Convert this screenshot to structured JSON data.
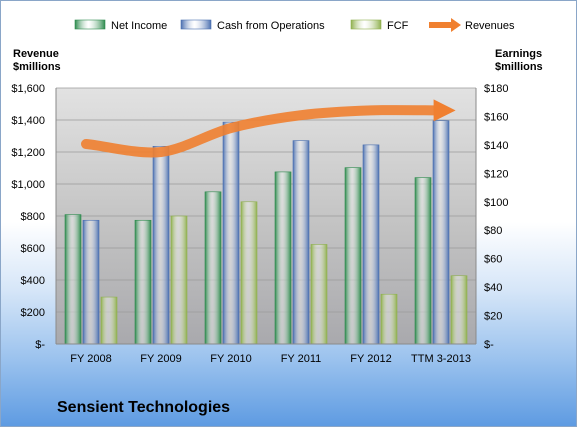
{
  "company": "Sensient Technologies",
  "left_axis": {
    "line1": "Revenue",
    "line2": "$millions"
  },
  "right_axis": {
    "line1": "Earnings",
    "line2": "$millions"
  },
  "chart_data": {
    "type": "bar",
    "categories": [
      "FY 2008",
      "FY 2009",
      "FY 2010",
      "FY 2011",
      "FY 2012",
      "TTM 3-2013"
    ],
    "series": [
      {
        "name": "Net Income",
        "axis": "right",
        "color": "#2e8b4e",
        "values": [
          91,
          87,
          107,
          121,
          124,
          117
        ]
      },
      {
        "name": "Cash from Operations",
        "axis": "right",
        "color": "#4a6fb0",
        "values": [
          87,
          139,
          156,
          143,
          140,
          157
        ]
      },
      {
        "name": "FCF",
        "axis": "right",
        "color": "#8fb04e",
        "values": [
          33,
          90,
          100,
          70,
          35,
          48
        ]
      },
      {
        "name": "Revenues",
        "axis": "left",
        "type": "line",
        "color": "#f08030",
        "values": [
          1250,
          1200,
          1350,
          1430,
          1460,
          1460
        ]
      }
    ],
    "left_ticks": [
      "$-",
      "$200",
      "$400",
      "$600",
      "$800",
      "$1,000",
      "$1,200",
      "$1,400",
      "$1,600"
    ],
    "right_ticks": [
      "$-",
      "$20",
      "$40",
      "$60",
      "$80",
      "$100",
      "$120",
      "$140",
      "$160",
      "$180"
    ],
    "left_ylim": [
      0,
      1600
    ],
    "right_ylim": [
      0,
      180
    ],
    "legend_position": "top",
    "grid": true
  }
}
